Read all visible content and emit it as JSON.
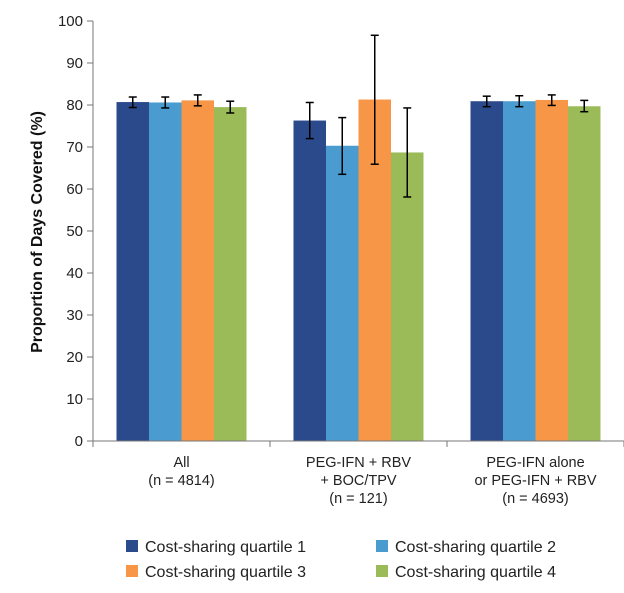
{
  "chart_data": {
    "type": "bar",
    "title": "",
    "xlabel": "",
    "ylabel": "Proportion of Days Covered (%)",
    "ylim": [
      0,
      100
    ],
    "yticks": [
      0,
      10,
      20,
      30,
      40,
      50,
      60,
      70,
      80,
      90,
      100
    ],
    "grid": false,
    "legend_position": "bottom",
    "categories": [
      [
        "All",
        "(n = 4814)"
      ],
      [
        "PEG-IFN + RBV",
        "+ BOC/TPV",
        "(n = 121)"
      ],
      [
        "PEG-IFN alone",
        "or PEG-IFN + RBV",
        "(n = 4693)"
      ]
    ],
    "series": [
      {
        "name": "Cost-sharing quartile 1",
        "color": "#2b4a8b",
        "values": [
          80.7,
          76.3,
          80.9
        ],
        "error_low": [
          79.4,
          72.0,
          79.6
        ],
        "error_high": [
          81.9,
          80.6,
          82.1
        ]
      },
      {
        "name": "Cost-sharing quartile 2",
        "color": "#4a9bd0",
        "values": [
          80.6,
          70.3,
          80.9
        ],
        "error_low": [
          79.3,
          63.5,
          79.6
        ],
        "error_high": [
          81.9,
          77.0,
          82.2
        ]
      },
      {
        "name": "Cost-sharing quartile 3",
        "color": "#f79646",
        "values": [
          81.1,
          81.3,
          81.2
        ],
        "error_low": [
          79.8,
          65.9,
          79.9
        ],
        "error_high": [
          82.4,
          96.6,
          82.4
        ]
      },
      {
        "name": "Cost-sharing quartile 4",
        "color": "#9bbb59",
        "values": [
          79.5,
          68.7,
          79.7
        ],
        "error_low": [
          78.1,
          58.1,
          78.4
        ],
        "error_high": [
          80.9,
          79.3,
          81.1
        ]
      }
    ]
  }
}
